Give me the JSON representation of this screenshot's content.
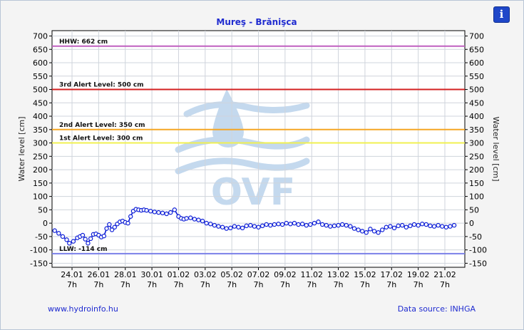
{
  "header": {
    "info_button": "i"
  },
  "footer": {
    "website": "www.hydroinfo.hu",
    "source": "Data source: INHGA"
  },
  "colors": {
    "title": "#1f2bd0",
    "series": "#0b1cd6",
    "hhw": "#c060c0",
    "alert3": "#d42020",
    "alert2": "#f5a623",
    "alert1": "#f0f050",
    "llw": "#7a7fe8",
    "watermark": "#c4d9ee"
  },
  "watermark": "OVF",
  "chart_data": {
    "type": "line",
    "title": "Mureş - Brănişca",
    "ylabel_left": "Water level [cm]",
    "ylabel_right": "Water level [cm]",
    "ylim": [
      -165,
      720
    ],
    "yticks": [
      -150,
      -100,
      -50,
      0,
      50,
      100,
      150,
      200,
      250,
      300,
      350,
      400,
      450,
      500,
      550,
      600,
      650,
      700
    ],
    "xlim": [
      0,
      31
    ],
    "xticks": [
      {
        "x": 1.5,
        "day": "24.01",
        "hour": "7h"
      },
      {
        "x": 3.5,
        "day": "26.01",
        "hour": "7h"
      },
      {
        "x": 5.5,
        "day": "28.01",
        "hour": "7h"
      },
      {
        "x": 7.5,
        "day": "30.01",
        "hour": "7h"
      },
      {
        "x": 9.5,
        "day": "01.02",
        "hour": "7h"
      },
      {
        "x": 11.5,
        "day": "03.02",
        "hour": "7h"
      },
      {
        "x": 13.5,
        "day": "05.02",
        "hour": "7h"
      },
      {
        "x": 15.5,
        "day": "07.02",
        "hour": "7h"
      },
      {
        "x": 17.5,
        "day": "09.02",
        "hour": "7h"
      },
      {
        "x": 19.5,
        "day": "11.02",
        "hour": "7h"
      },
      {
        "x": 21.5,
        "day": "13.02",
        "hour": "7h"
      },
      {
        "x": 23.5,
        "day": "15.02",
        "hour": "7h"
      },
      {
        "x": 25.5,
        "day": "17.02",
        "hour": "7h"
      },
      {
        "x": 27.5,
        "day": "19.02",
        "hour": "7h"
      },
      {
        "x": 29.5,
        "day": "21.02",
        "hour": "7h"
      }
    ],
    "levels": [
      {
        "name": "HHW: 662 cm",
        "value": 662,
        "color": "#c060c0"
      },
      {
        "name": "3rd Alert Level: 500 cm",
        "value": 500,
        "color": "#d42020"
      },
      {
        "name": "2nd Alert Level: 350 cm",
        "value": 350,
        "color": "#f5a623"
      },
      {
        "name": "1st Alert Level: 300 cm",
        "value": 300,
        "color": "#f0f050"
      },
      {
        "name": "LLW: -114 cm",
        "value": -114,
        "color": "#7a7fe8"
      }
    ],
    "series": [
      {
        "x": [
          0.2,
          0.5,
          0.8,
          1.1,
          1.3,
          1.6,
          1.9,
          2.1,
          2.3,
          2.5,
          2.7,
          2.9,
          3.1,
          3.3,
          3.5,
          3.7,
          3.9,
          4.1,
          4.3,
          4.5,
          4.7,
          4.9,
          5.1,
          5.3,
          5.5,
          5.7,
          5.9,
          6.1,
          6.3,
          6.5,
          6.7,
          6.9,
          7.1,
          7.4,
          7.7,
          8.0,
          8.3,
          8.6,
          8.9,
          9.2,
          9.5,
          9.7,
          9.9,
          10.1,
          10.4,
          10.7,
          11.0,
          11.3,
          11.6,
          11.9,
          12.2,
          12.5,
          12.8,
          13.1,
          13.4,
          13.7,
          14.0,
          14.3,
          14.6,
          14.9,
          15.2,
          15.5,
          15.8,
          16.1,
          16.4,
          16.7,
          17.0,
          17.3,
          17.6,
          17.9,
          18.2,
          18.5,
          18.8,
          19.1,
          19.4,
          19.7,
          20.0,
          20.3,
          20.6,
          20.9,
          21.2,
          21.5,
          21.8,
          22.1,
          22.4,
          22.7,
          23.0,
          23.3,
          23.6,
          23.9,
          24.2,
          24.5,
          24.8,
          25.1,
          25.4,
          25.7,
          26.0,
          26.3,
          26.6,
          26.9,
          27.2,
          27.5,
          27.8,
          28.1,
          28.4,
          28.7,
          29.0,
          29.3,
          29.6,
          29.9,
          30.2
        ],
        "y": [
          -28,
          -38,
          -50,
          -62,
          -75,
          -68,
          -55,
          -50,
          -45,
          -60,
          -75,
          -58,
          -42,
          -40,
          -45,
          -52,
          -48,
          -20,
          -5,
          -25,
          -15,
          -3,
          5,
          8,
          3,
          0,
          25,
          45,
          52,
          50,
          48,
          50,
          48,
          45,
          42,
          40,
          38,
          35,
          40,
          50,
          25,
          18,
          15,
          18,
          20,
          15,
          12,
          8,
          0,
          -3,
          -8,
          -12,
          -15,
          -20,
          -18,
          -12,
          -15,
          -18,
          -10,
          -8,
          -12,
          -15,
          -10,
          -5,
          -8,
          -5,
          -3,
          -5,
          0,
          -3,
          0,
          -5,
          -3,
          -8,
          -5,
          0,
          5,
          -5,
          -8,
          -12,
          -10,
          -8,
          -5,
          -8,
          -12,
          -20,
          -25,
          -30,
          -35,
          -22,
          -30,
          -35,
          -25,
          -15,
          -12,
          -18,
          -10,
          -8,
          -15,
          -10,
          -5,
          -8,
          -3,
          -5,
          -10,
          -12,
          -8,
          -12,
          -15,
          -12,
          -8
        ]
      }
    ]
  }
}
